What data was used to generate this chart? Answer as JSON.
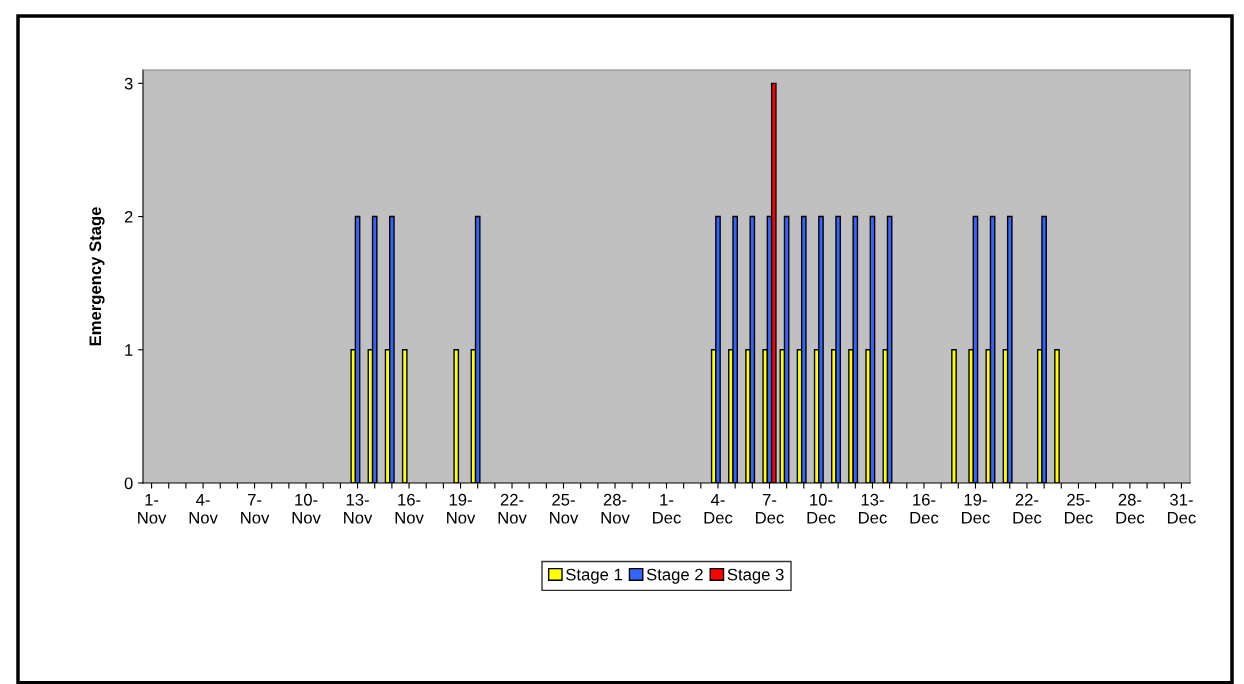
{
  "chart_data": {
    "type": "bar",
    "ylabel": "Emergency Stage",
    "categories": [
      "1-\nNov",
      null,
      null,
      "4-\nNov",
      null,
      null,
      "7-\nNov",
      null,
      null,
      "10-\nNov",
      null,
      null,
      "13-\nNov",
      null,
      null,
      "16-\nNov",
      null,
      null,
      "19-\nNov",
      null,
      null,
      "22-\nNov",
      null,
      null,
      "25-\nNov",
      null,
      null,
      "28-\nNov",
      null,
      null,
      "1-\nDec",
      null,
      null,
      "4-\nDec",
      null,
      null,
      "7-\nDec",
      null,
      null,
      "10-\nDec",
      null,
      null,
      "13-\nDec",
      null,
      null,
      "16-\nDec",
      null,
      null,
      "19-\nDec",
      null,
      null,
      "22-\nDec",
      null,
      null,
      "25-\nDec",
      null,
      null,
      "28-\nDec",
      null,
      null,
      "31-\nDec"
    ],
    "series": [
      {
        "name": "Stage 1",
        "color": "#ffff00",
        "values": [
          null,
          null,
          null,
          null,
          null,
          null,
          null,
          null,
          null,
          null,
          null,
          null,
          1,
          1,
          1,
          1,
          null,
          null,
          1,
          1,
          null,
          null,
          null,
          null,
          null,
          null,
          null,
          null,
          null,
          null,
          null,
          null,
          null,
          1,
          1,
          1,
          1,
          1,
          1,
          1,
          1,
          1,
          1,
          1,
          null,
          null,
          null,
          1,
          1,
          1,
          1,
          null,
          1,
          1,
          null,
          null,
          null,
          null,
          null,
          null,
          null
        ]
      },
      {
        "name": "Stage 2",
        "color": "#3366ff",
        "values": [
          null,
          null,
          null,
          null,
          null,
          null,
          null,
          null,
          null,
          null,
          null,
          null,
          2,
          2,
          2,
          null,
          null,
          null,
          null,
          2,
          null,
          null,
          null,
          null,
          null,
          null,
          null,
          null,
          null,
          null,
          null,
          null,
          null,
          2,
          2,
          2,
          2,
          2,
          2,
          2,
          2,
          2,
          2,
          2,
          null,
          null,
          null,
          null,
          2,
          2,
          2,
          null,
          2,
          null,
          null,
          null,
          null,
          null,
          null,
          null,
          null
        ]
      },
      {
        "name": "Stage 3",
        "color": "#ff0000",
        "values": [
          null,
          null,
          null,
          null,
          null,
          null,
          null,
          null,
          null,
          null,
          null,
          null,
          null,
          null,
          null,
          null,
          null,
          null,
          null,
          null,
          null,
          null,
          null,
          null,
          null,
          null,
          null,
          null,
          null,
          null,
          null,
          null,
          null,
          null,
          null,
          null,
          3,
          null,
          null,
          null,
          null,
          null,
          null,
          null,
          null,
          null,
          null,
          null,
          null,
          null,
          null,
          null,
          null,
          null,
          null,
          null,
          null,
          null,
          null,
          null,
          null
        ]
      }
    ],
    "ylim": [
      0,
      3.1
    ],
    "yticks": [
      0,
      1,
      2,
      3
    ],
    "grid": false,
    "legend": "bottom"
  }
}
